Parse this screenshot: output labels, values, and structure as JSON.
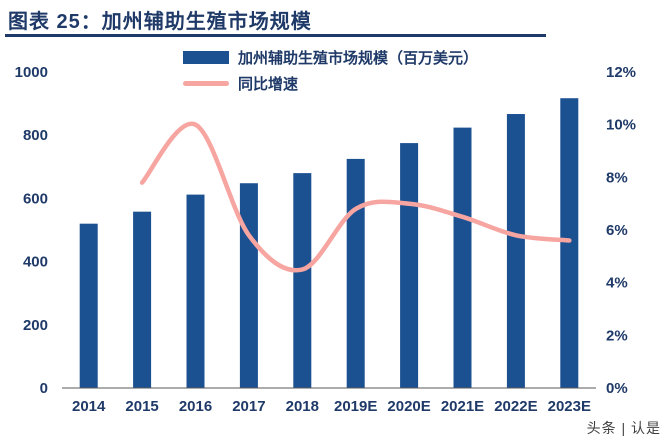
{
  "header": {
    "title": "图表 25：加州辅助生殖市场规模"
  },
  "legend": {
    "bar_label": "加州辅助生殖市场规模（百万美元）",
    "line_label": "同比增速"
  },
  "watermark": "头条 | 认是",
  "colors": {
    "bar": "#1b5091",
    "line": "#f7a5a1",
    "text": "#1f3a68",
    "axis_line": "#595959"
  },
  "chart_data": {
    "type": "bar",
    "subtype": "bar+line combo",
    "title": "加州辅助生殖市场规模",
    "categories": [
      "2014",
      "2015",
      "2016",
      "2017",
      "2018",
      "2019E",
      "2020E",
      "2021E",
      "2022E",
      "2023E"
    ],
    "series": [
      {
        "name": "加州辅助生殖市场规模（百万美元）",
        "type": "bar",
        "axis": "left",
        "values": [
          520,
          558,
          612,
          648,
          680,
          725,
          775,
          824,
          867,
          917
        ]
      },
      {
        "name": "同比增速",
        "type": "line",
        "axis": "right",
        "values": [
          null,
          7.8,
          10.0,
          5.8,
          4.5,
          6.8,
          7.0,
          6.5,
          5.8,
          5.6
        ],
        "unit": "%"
      }
    ],
    "left_axis": {
      "min": 0,
      "max": 1000,
      "step": 200,
      "ticks": [
        "0",
        "200",
        "400",
        "600",
        "800",
        "1000"
      ]
    },
    "right_axis": {
      "min": 0,
      "max": 12,
      "step": 2,
      "ticks": [
        "0%",
        "2%",
        "4%",
        "6%",
        "8%",
        "10%",
        "12%"
      ]
    },
    "grid": false,
    "legend_position": "top"
  }
}
